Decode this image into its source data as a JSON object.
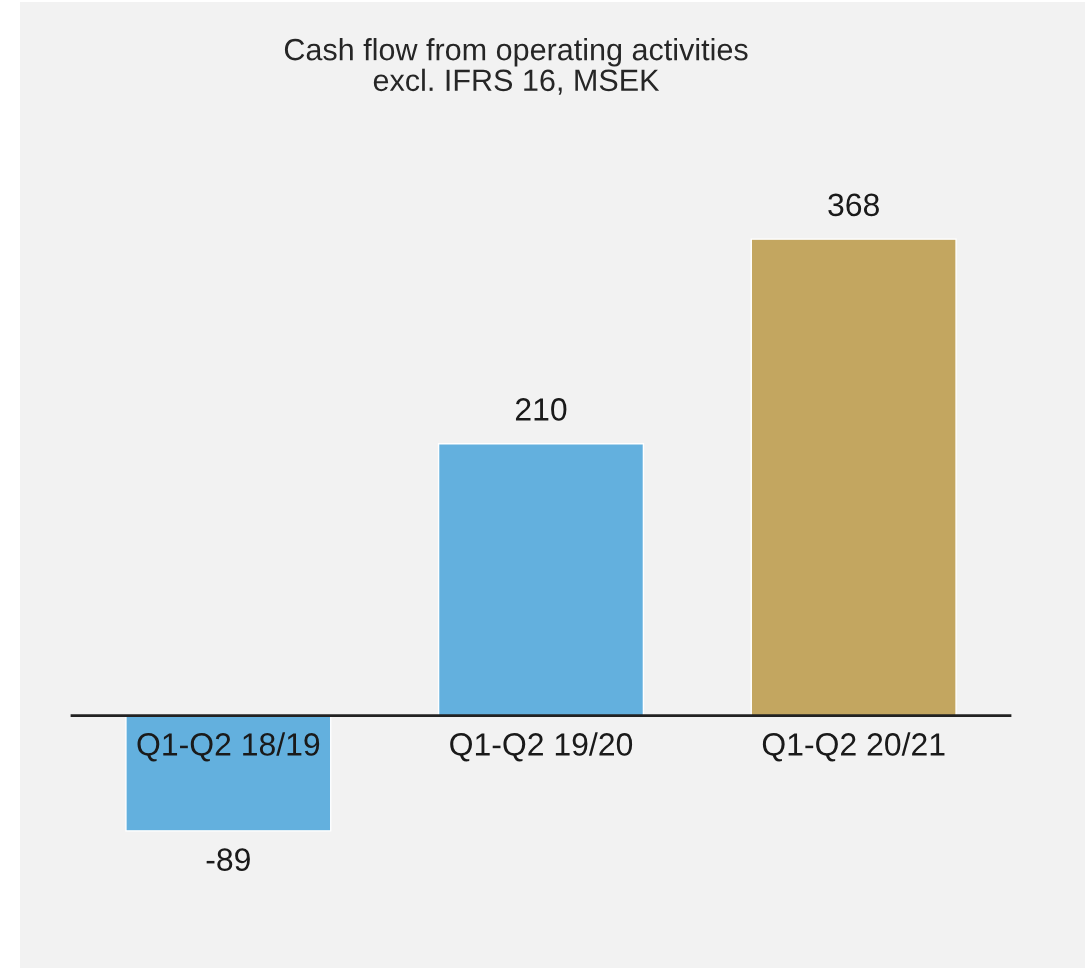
{
  "chart_data": {
    "type": "bar",
    "title": "Cash flow from operating activities\nexcl. IFRS 16, MSEK",
    "categories": [
      "Q1-Q2 18/19",
      "Q1-Q2 19/20",
      "Q1-Q2 20/21"
    ],
    "values": [
      -89,
      210,
      368
    ],
    "colors": [
      "#63b0de",
      "#63b0de",
      "#c3a660"
    ],
    "data_labels": true
  }
}
